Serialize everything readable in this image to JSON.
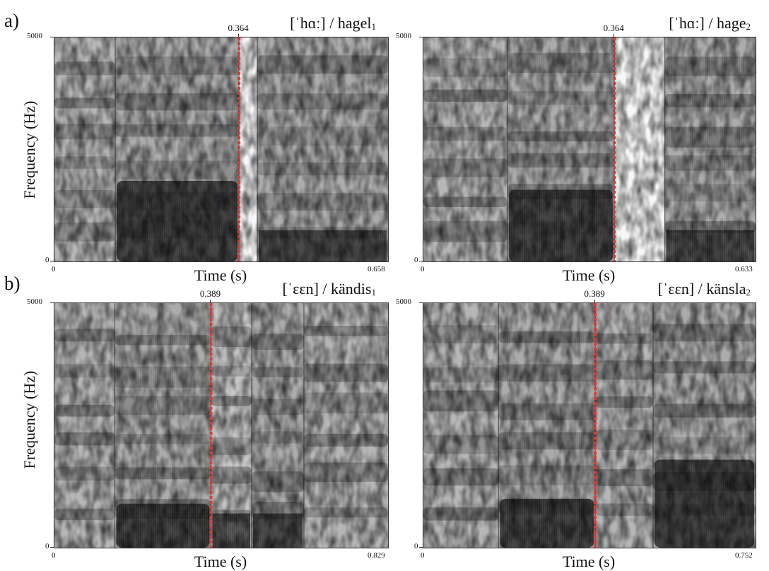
{
  "panels": {
    "a": "a)",
    "b": "b)"
  },
  "common": {
    "ylabel": "Frequency (Hz)",
    "xlabel": "Time (s)",
    "ymin": "0",
    "ymax": "5000",
    "xmin": "0"
  },
  "chart_data": [
    {
      "type": "heatmap",
      "panel": "a)",
      "word": "hagel",
      "word_subscript": "1",
      "transcription": "[ˈhɑː] / ",
      "xlabel": "Time (s)",
      "ylabel": "Frequency (Hz)",
      "xlim": [
        0,
        0.658
      ],
      "ylim": [
        0,
        5000
      ],
      "x_max_label": "0.658",
      "marker_time": 0.364,
      "marker_label": "0.364",
      "marker_color": "#e53935",
      "segments": [
        {
          "t0": 0.0,
          "t1": 0.12,
          "kind": "fricative"
        },
        {
          "t0": 0.12,
          "t1": 0.364,
          "kind": "vowel",
          "dark_low_band": [
            0,
            1800
          ]
        },
        {
          "t0": 0.364,
          "t1": 0.4,
          "kind": "closure"
        },
        {
          "t0": 0.4,
          "t1": 0.658,
          "kind": "voiced"
        }
      ]
    },
    {
      "type": "heatmap",
      "panel": "a)",
      "word": "hage",
      "word_subscript": "2",
      "transcription": "[ˈhɑː] / ",
      "xlabel": "Time (s)",
      "ylabel": "Frequency (Hz)",
      "xlim": [
        0,
        0.633
      ],
      "ylim": [
        0,
        5000
      ],
      "x_max_label": "0.633",
      "marker_time": 0.364,
      "marker_label": "0.364",
      "marker_color": "#e53935",
      "segments": [
        {
          "t0": 0.0,
          "t1": 0.16,
          "kind": "fricative"
        },
        {
          "t0": 0.16,
          "t1": 0.364,
          "kind": "vowel",
          "dark_low_band": [
            0,
            1600
          ]
        },
        {
          "t0": 0.364,
          "t1": 0.46,
          "kind": "closure"
        },
        {
          "t0": 0.46,
          "t1": 0.633,
          "kind": "voiced"
        }
      ]
    },
    {
      "type": "heatmap",
      "panel": "b)",
      "word": "kändis",
      "word_subscript": "1",
      "transcription": "[ˈɛɛn] / ",
      "xlabel": "Time (s)",
      "ylabel": "Frequency (Hz)",
      "xlim": [
        0,
        0.829
      ],
      "ylim": [
        0,
        5000
      ],
      "x_max_label": "0.829",
      "marker_time": 0.389,
      "marker_label": "0.389",
      "marker_color": "#e53935",
      "segments": [
        {
          "t0": 0.0,
          "t1": 0.15,
          "kind": "fricative"
        },
        {
          "t0": 0.15,
          "t1": 0.389,
          "kind": "vowel",
          "dark_low_band": [
            0,
            900
          ]
        },
        {
          "t0": 0.389,
          "t1": 0.49,
          "kind": "nasal"
        },
        {
          "t0": 0.49,
          "t1": 0.62,
          "kind": "voiced"
        },
        {
          "t0": 0.62,
          "t1": 0.829,
          "kind": "fricative"
        }
      ]
    },
    {
      "type": "heatmap",
      "panel": "b)",
      "word": "känsla",
      "word_subscript": "2",
      "transcription": "[ˈɛɛn] / ",
      "xlabel": "Time (s)",
      "ylabel": "Frequency (Hz)",
      "xlim": [
        0,
        0.752
      ],
      "ylim": [
        0,
        5000
      ],
      "x_max_label": "0.752",
      "marker_time": 0.389,
      "marker_label": "0.389",
      "marker_color": "#e53935",
      "segments": [
        {
          "t0": 0.0,
          "t1": 0.17,
          "kind": "fricative"
        },
        {
          "t0": 0.17,
          "t1": 0.389,
          "kind": "vowel",
          "dark_low_band": [
            0,
            1000
          ]
        },
        {
          "t0": 0.389,
          "t1": 0.52,
          "kind": "fricative"
        },
        {
          "t0": 0.52,
          "t1": 0.752,
          "kind": "voiced",
          "dark_low_band": [
            0,
            1800
          ]
        }
      ]
    }
  ]
}
